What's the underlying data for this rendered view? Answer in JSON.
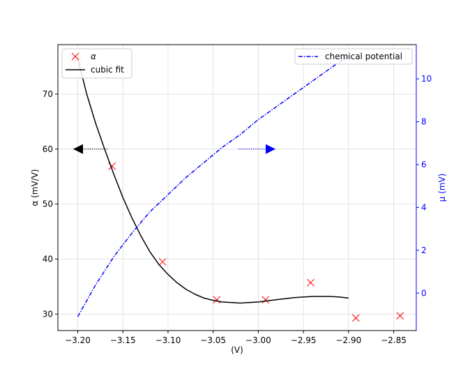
{
  "chart_data": {
    "type": "line",
    "xlabel": "(V)",
    "ylabel_left": "α (mV/V)",
    "ylabel_right": "μ (mV)",
    "xlim": [
      -3.222,
      -2.825
    ],
    "ylim_left": [
      27.0,
      79.0
    ],
    "ylim_right": [
      -1.75,
      11.6
    ],
    "x_ticks": [
      -3.2,
      -3.15,
      -3.1,
      -3.05,
      -3.0,
      -2.95,
      -2.9,
      -2.85
    ],
    "x_tick_labels": [
      "−3.20",
      "−3.15",
      "−3.10",
      "−3.05",
      "−3.00",
      "−2.95",
      "−2.90",
      "−2.85"
    ],
    "y_left_ticks": [
      30,
      40,
      50,
      60,
      70
    ],
    "y_left_tick_labels": [
      "30",
      "40",
      "50",
      "60",
      "70"
    ],
    "y_right_ticks": [
      0,
      2,
      4,
      6,
      8,
      10
    ],
    "y_right_tick_labels": [
      "0",
      "2",
      "4",
      "6",
      "8",
      "10"
    ],
    "grid": true,
    "series": [
      {
        "name": "α",
        "axis": "left",
        "style": "markers-x",
        "color": "#ff0000",
        "x": [
          -3.2,
          -3.162,
          -3.106,
          -3.046,
          -2.992,
          -2.942,
          -2.892,
          -2.843
        ],
        "y": [
          76.5,
          56.9,
          39.5,
          32.6,
          32.6,
          35.7,
          29.3,
          29.7
        ]
      },
      {
        "name": "cubic fit",
        "axis": "left",
        "style": "solid",
        "color": "#000000",
        "x": [
          -3.2,
          -3.19,
          -3.18,
          -3.17,
          -3.16,
          -3.15,
          -3.14,
          -3.13,
          -3.12,
          -3.11,
          -3.1,
          -3.09,
          -3.08,
          -3.07,
          -3.06,
          -3.05,
          -3.04,
          -3.03,
          -3.02,
          -3.01,
          -3.0,
          -2.99,
          -2.98,
          -2.97,
          -2.96,
          -2.95,
          -2.94,
          -2.93,
          -2.92,
          -2.91,
          -2.9
        ],
        "y": [
          76.5,
          70.0,
          64.6,
          59.9,
          55.4,
          51.2,
          47.5,
          44.2,
          41.3,
          39.0,
          37.2,
          35.7,
          34.5,
          33.6,
          32.9,
          32.5,
          32.2,
          32.1,
          32.0,
          32.1,
          32.2,
          32.4,
          32.6,
          32.8,
          33.0,
          33.1,
          33.2,
          33.2,
          33.2,
          33.1,
          32.9
        ]
      },
      {
        "name": "chemical potential",
        "axis": "right",
        "style": "dashdot",
        "color": "#0000ff",
        "x": [
          -3.2,
          -3.18,
          -3.16,
          -3.14,
          -3.12,
          -3.1,
          -3.08,
          -3.06,
          -3.04,
          -3.02,
          -3.0,
          -2.98,
          -2.96,
          -2.94,
          -2.92,
          -2.9
        ],
        "y": [
          -1.1,
          0.4,
          1.7,
          2.8,
          3.8,
          4.6,
          5.4,
          6.1,
          6.8,
          7.4,
          8.1,
          8.7,
          9.3,
          9.9,
          10.5,
          11.1
        ]
      }
    ],
    "axis_arrows": [
      {
        "direction": "left",
        "axis": "left",
        "color": "#000000",
        "x_from": -3.167,
        "x_to": -3.205,
        "y": 60
      },
      {
        "direction": "right",
        "axis": "left",
        "color": "#0000ff",
        "x_from": -3.022,
        "x_to": -2.981,
        "y": 60
      }
    ],
    "legend_left": {
      "placement": "upper-left",
      "entries": [
        "α",
        "cubic fit"
      ]
    },
    "legend_right": {
      "placement": "upper-right",
      "entries": [
        "chemical potential"
      ]
    }
  }
}
